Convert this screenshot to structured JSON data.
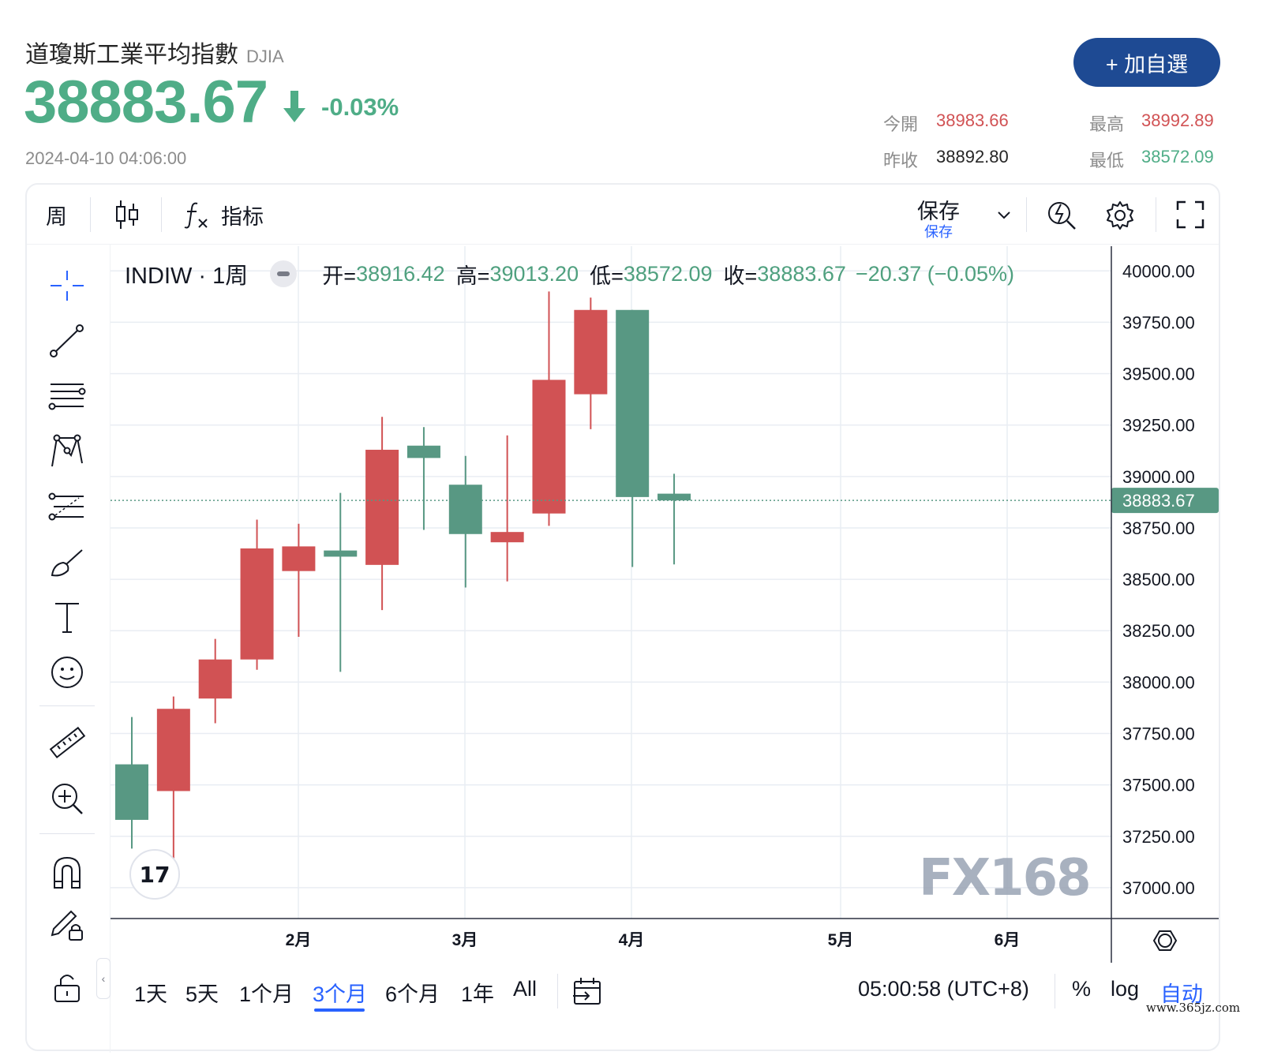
{
  "header": {
    "title": "道瓊斯工業平均指數",
    "ticker": "DJIA",
    "price": "38883.67",
    "change_pct": "-0.03%",
    "timestamp": "2024-04-10 04:06:00",
    "add_watchlist_label": "+ 加自選"
  },
  "stats": {
    "open_label": "今開",
    "open_value": "38983.66",
    "high_label": "最高",
    "high_value": "38992.89",
    "prev_close_label": "昨收",
    "prev_close_value": "38892.80",
    "low_label": "最低",
    "low_value": "38572.09"
  },
  "colors": {
    "up": "#d15254",
    "down": "#589883",
    "accent": "#2962ff",
    "brand": "#1e4a93",
    "price_green": "#4fad87"
  },
  "toolbar": {
    "interval": "周",
    "candle_icon": "candlestick-icon",
    "indicator_icon": "fx-icon",
    "indicators_label": "指标",
    "save_label": "保存",
    "save_sub_label": "保存",
    "icons": [
      "chevron-down-icon",
      "quick-search-icon",
      "gear-icon",
      "fullscreen-icon"
    ]
  },
  "drawing_tools": [
    "crosshair-icon",
    "trend-line-icon",
    "fib-lines-icon",
    "pattern-icon",
    "prediction-icon",
    "brush-icon",
    "text-icon",
    "emoji-icon",
    "ruler-icon",
    "zoom-in-icon",
    "magnet-icon",
    "lock-pencil-icon",
    "lock-icon"
  ],
  "legend": {
    "symbol": "INDIW · 1周",
    "open_label": "开=",
    "open": "38916.42",
    "high_label": "高=",
    "high": "39013.20",
    "low_label": "低=",
    "low": "38572.09",
    "close_label": "收=",
    "close": "38883.67",
    "change": "−20.37 (−0.05%)"
  },
  "chart_data": {
    "type": "candlestick",
    "interval": "weekly",
    "last_price_label": "38883.67",
    "y_ticks": [
      "40000.00",
      "39750.00",
      "39500.00",
      "39250.00",
      "39000.00",
      "38750.00",
      "38500.00",
      "38250.00",
      "38000.00",
      "37750.00",
      "37500.00",
      "37250.00",
      "37000.00"
    ],
    "ylim": [
      36850,
      40120
    ],
    "x_ticks": [
      "2月",
      "3月",
      "4月",
      "5月",
      "6月"
    ],
    "watermark": "FX168",
    "candles": [
      {
        "o": 37600,
        "h": 37830,
        "l": 37190,
        "c": 37330
      },
      {
        "o": 37470,
        "h": 37930,
        "l": 37140,
        "c": 37870
      },
      {
        "o": 37920,
        "h": 38210,
        "l": 37800,
        "c": 38110
      },
      {
        "o": 38110,
        "h": 38790,
        "l": 38060,
        "c": 38650
      },
      {
        "o": 38540,
        "h": 38770,
        "l": 38220,
        "c": 38660
      },
      {
        "o": 38640,
        "h": 38920,
        "l": 38050,
        "c": 38610
      },
      {
        "o": 38570,
        "h": 39290,
        "l": 38350,
        "c": 39130
      },
      {
        "o": 39150,
        "h": 39240,
        "l": 38740,
        "c": 39090
      },
      {
        "o": 38960,
        "h": 39100,
        "l": 38460,
        "c": 38720
      },
      {
        "o": 38680,
        "h": 39200,
        "l": 38490,
        "c": 38730
      },
      {
        "o": 38820,
        "h": 39900,
        "l": 38760,
        "c": 39470
      },
      {
        "o": 39400,
        "h": 39870,
        "l": 39230,
        "c": 39810
      },
      {
        "o": 39810,
        "h": 39810,
        "l": 38560,
        "c": 38900
      },
      {
        "o": 38916.42,
        "h": 39013.2,
        "l": 38572.09,
        "c": 38883.67
      }
    ]
  },
  "bottom": {
    "ranges": [
      "1天",
      "5天",
      "1个月",
      "3个月",
      "6个月",
      "1年",
      "All"
    ],
    "active_range": "3个月",
    "clock": "05:00:58 (UTC+8)",
    "percent": "%",
    "log": "log",
    "auto": "自动"
  },
  "footer_url": "www.365jz.com"
}
